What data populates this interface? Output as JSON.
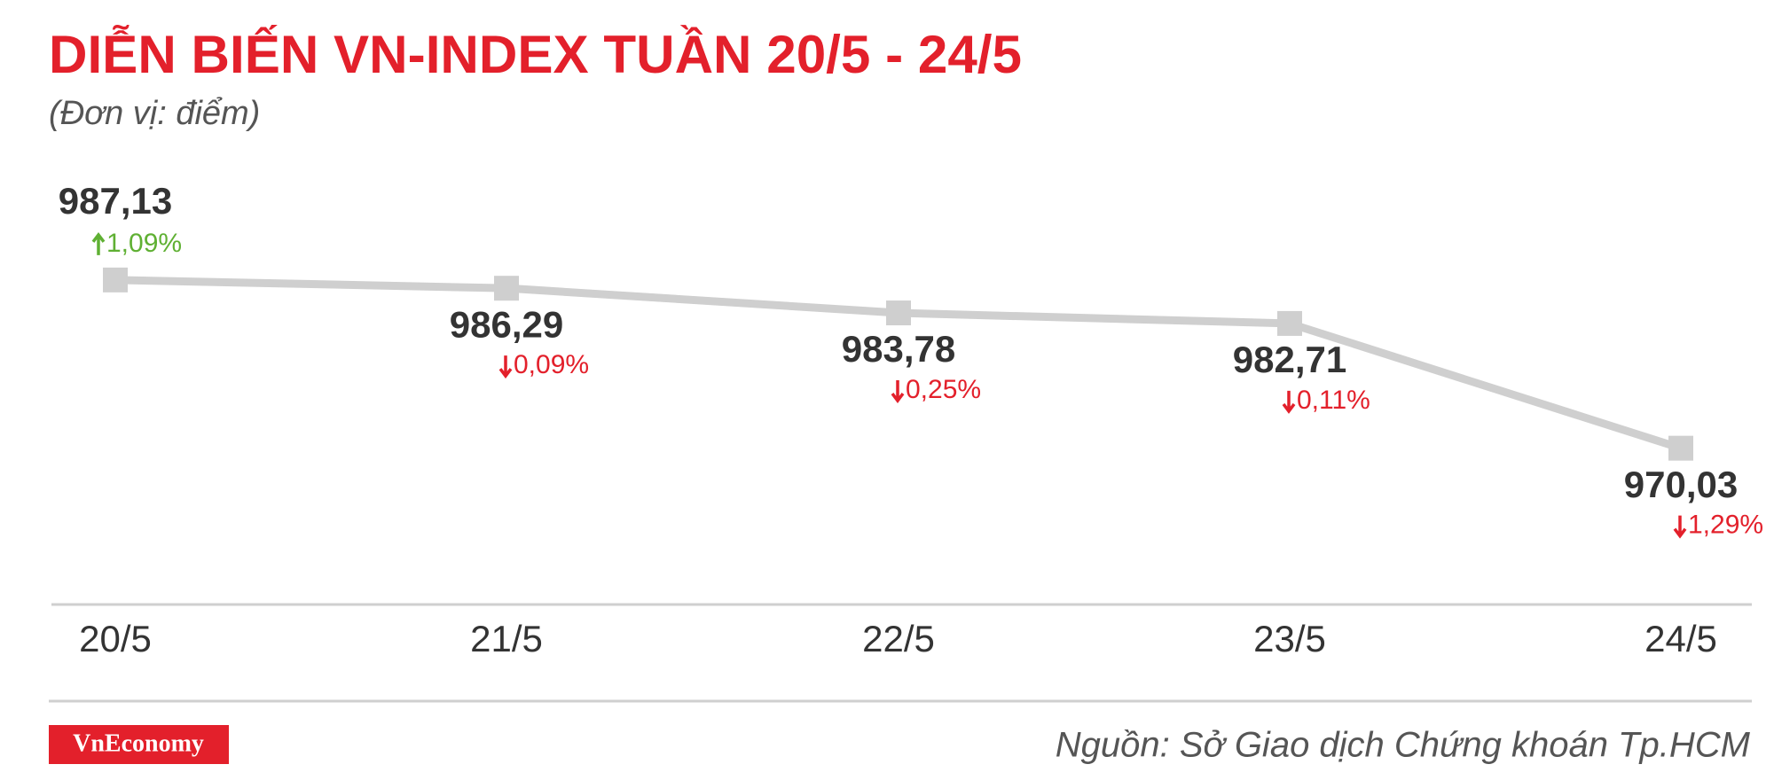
{
  "chart_data": {
    "type": "line",
    "title": "DIỄN BIẾN VN-INDEX TUẦN 20/5 - 24/5",
    "subtitle": "(Đơn vị: điểm)",
    "categories": [
      "20/5",
      "21/5",
      "22/5",
      "23/5",
      "24/5"
    ],
    "values": [
      987.13,
      986.29,
      983.78,
      982.71,
      970.03
    ],
    "value_labels": [
      "987,13",
      "986,29",
      "983,78",
      "982,71",
      "970,03"
    ],
    "change_values": [
      1.09,
      -0.09,
      -0.25,
      -0.11,
      -1.29
    ],
    "change_labels": [
      "1,09%",
      "0,09%",
      "0,25%",
      "0,11%",
      "1,29%"
    ],
    "color": "#cfcfcf",
    "ylim": [
      960,
      1000
    ],
    "source": "Nguồn: Sở Giao dịch Chứng khoán Tp.HCM",
    "logo": "VnEconomy"
  }
}
